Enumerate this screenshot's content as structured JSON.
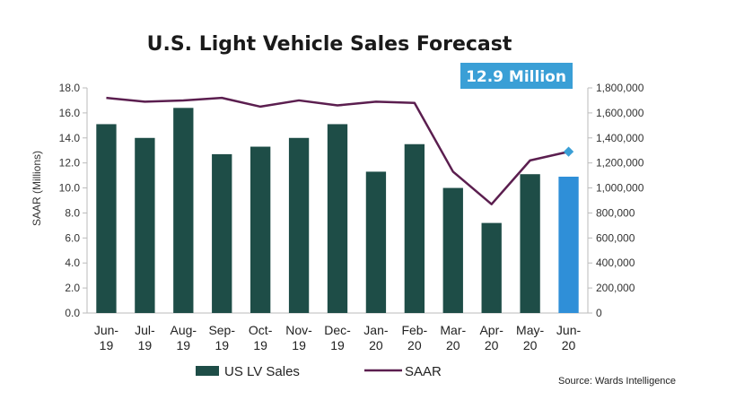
{
  "chart_data": {
    "type": "bar",
    "title": "U.S. Light Vehicle Sales Forecast",
    "categories": [
      [
        "Jun-",
        "19"
      ],
      [
        "Jul-",
        "19"
      ],
      [
        "Aug-",
        "19"
      ],
      [
        "Sep-",
        "19"
      ],
      [
        "Oct-",
        "19"
      ],
      [
        "Nov-",
        "19"
      ],
      [
        "Dec-",
        "19"
      ],
      [
        "Jan-",
        "20"
      ],
      [
        "Feb-",
        "20"
      ],
      [
        "Mar-",
        "20"
      ],
      [
        "Apr-",
        "20"
      ],
      [
        "May-",
        "20"
      ],
      [
        "Jun-",
        "20"
      ]
    ],
    "ylabel": "SAAR (Millions)",
    "ylim": [
      0,
      18
    ],
    "y_ticks": [
      "0.0",
      "2.0",
      "4.0",
      "6.0",
      "8.0",
      "10.0",
      "12.0",
      "14.0",
      "16.0",
      "18.0"
    ],
    "y2lim": [
      0,
      1800000
    ],
    "y2_ticks": [
      "0",
      "200,000",
      "400,000",
      "600,000",
      "800,000",
      "1,000,000",
      "1,200,000",
      "1,400,000",
      "1,600,000",
      "1,800,000"
    ],
    "grid": false,
    "legend_position": "bottom",
    "series": [
      {
        "name": "US LV Sales",
        "type": "bar",
        "axis": "right",
        "values": [
          1510000,
          1400000,
          1640000,
          1270000,
          1330000,
          1400000,
          1510000,
          1130000,
          1350000,
          1000000,
          720000,
          1110000,
          1090000
        ],
        "color": "#1e4d47",
        "highlight_last_color": "#2f8fd8"
      },
      {
        "name": "SAAR",
        "type": "line",
        "axis": "left",
        "values": [
          17.2,
          16.9,
          17.0,
          17.2,
          16.5,
          17.0,
          16.6,
          16.9,
          16.8,
          11.3,
          8.7,
          12.2,
          12.9
        ],
        "color": "#5b1e4f",
        "marker_last_color": "#3a9fd6"
      }
    ],
    "callout": {
      "text": "12.9 Million",
      "color": "#3a9fd6"
    },
    "source": "Source: Wards Intelligence"
  }
}
